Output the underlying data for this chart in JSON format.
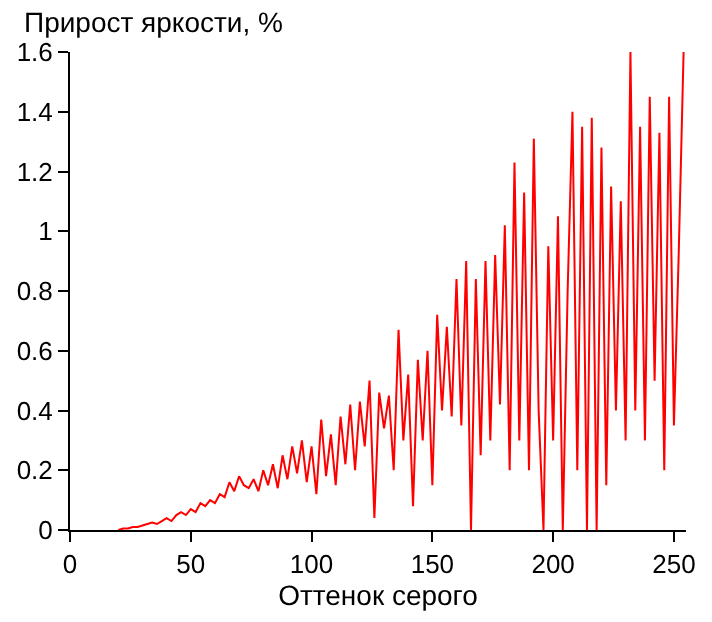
{
  "chart_data": {
    "type": "line",
    "ylabel": "Прирост яркости, %",
    "xlabel": "Оттенок серого",
    "x": [
      20,
      22,
      24,
      26,
      28,
      30,
      32,
      34,
      36,
      38,
      40,
      42,
      44,
      46,
      48,
      50,
      52,
      54,
      56,
      58,
      60,
      62,
      64,
      66,
      68,
      70,
      72,
      74,
      76,
      78,
      80,
      82,
      84,
      86,
      88,
      90,
      92,
      94,
      96,
      98,
      100,
      102,
      104,
      106,
      108,
      110,
      112,
      114,
      116,
      118,
      120,
      122,
      124,
      126,
      128,
      130,
      132,
      134,
      136,
      138,
      140,
      142,
      144,
      146,
      148,
      150,
      152,
      154,
      156,
      158,
      160,
      162,
      164,
      166,
      168,
      170,
      172,
      174,
      176,
      178,
      180,
      182,
      184,
      186,
      188,
      190,
      192,
      194,
      196,
      198,
      200,
      202,
      204,
      206,
      208,
      210,
      212,
      214,
      216,
      218,
      220,
      222,
      224,
      226,
      228,
      230,
      232,
      234,
      236,
      238,
      240,
      242,
      244,
      246,
      248,
      250,
      252,
      254
    ],
    "series": [
      {
        "color": "#ff0000",
        "values": [
          0,
          0.005,
          0.005,
          0.01,
          0.01,
          0.015,
          0.02,
          0.025,
          0.02,
          0.03,
          0.04,
          0.03,
          0.05,
          0.06,
          0.05,
          0.07,
          0.06,
          0.09,
          0.08,
          0.1,
          0.09,
          0.12,
          0.11,
          0.16,
          0.13,
          0.18,
          0.15,
          0.14,
          0.17,
          0.13,
          0.2,
          0.15,
          0.22,
          0.14,
          0.25,
          0.17,
          0.28,
          0.19,
          0.3,
          0.16,
          0.28,
          0.12,
          0.37,
          0.18,
          0.32,
          0.15,
          0.38,
          0.22,
          0.42,
          0.2,
          0.43,
          0.28,
          0.5,
          0.04,
          0.46,
          0.34,
          0.45,
          0.2,
          0.67,
          0.3,
          0.52,
          0.08,
          0.57,
          0.3,
          0.6,
          0.15,
          0.72,
          0.4,
          0.68,
          0.38,
          0.84,
          0.35,
          0.9,
          0,
          0.84,
          0.25,
          0.9,
          0.3,
          0.92,
          0.42,
          1.02,
          0.2,
          1.23,
          0.3,
          1.13,
          0.2,
          1.31,
          0.4,
          0,
          0.95,
          0.3,
          1.05,
          0,
          0.8,
          1.4,
          0.2,
          1.35,
          0,
          1.38,
          0,
          1.28,
          0.15,
          1.15,
          0.4,
          1.1,
          0.3,
          1.6,
          0.4,
          1.35,
          0.3,
          1.45,
          0.5,
          1.33,
          0.2,
          1.45,
          0.35,
          0.93,
          1.6
        ]
      }
    ],
    "xlim": [
      0,
      255
    ],
    "xticks": [
      0,
      50,
      100,
      150,
      200,
      250
    ],
    "ylim": [
      0,
      1.6
    ],
    "yticks": [
      0,
      0.2,
      0.4,
      0.6,
      0.8,
      1,
      1.2,
      1.4,
      1.6
    ],
    "legend": false,
    "marker": "none",
    "line_style": "solid"
  }
}
